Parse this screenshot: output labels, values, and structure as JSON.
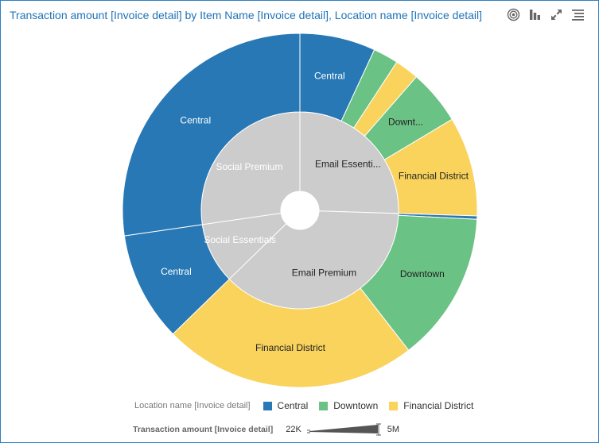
{
  "title": "Transaction amount [Invoice detail] by Item Name [Invoice detail], Location name [Invoice detail]",
  "toolbar": [
    "radial-target-icon",
    "bar-chart-icon",
    "expand-icon",
    "list-menu-icon"
  ],
  "legend": {
    "title": "Location name [Invoice detail]",
    "items": [
      {
        "label": "Central",
        "color": "#2878b5"
      },
      {
        "label": "Downtown",
        "color": "#6bc285"
      },
      {
        "label": "Financial District",
        "color": "#f9d35c"
      }
    ]
  },
  "size_legend": {
    "title": "Transaction amount [Invoice detail]",
    "min": "22K",
    "max": "5M"
  },
  "chart_data": {
    "type": "sunburst",
    "inner_color": "#cccccc",
    "inner": [
      {
        "label": "Email Essenti...",
        "value": 0.255
      },
      {
        "label": "Email Premium",
        "value": 0.372
      },
      {
        "label": "Social Essentials",
        "value": 0.1
      },
      {
        "label": "Social Premium",
        "value": 0.273
      }
    ],
    "outer": [
      {
        "label": "Central",
        "location": "Central",
        "parent": "Email Essenti...",
        "value": 0.069
      },
      {
        "label": "",
        "location": "Downtown",
        "parent": "Email Essenti...",
        "value": 0.023
      },
      {
        "label": "",
        "location": "Financial District",
        "parent": "Email Essenti...",
        "value": 0.022
      },
      {
        "label": "Downt...",
        "location": "Downtown",
        "parent": "Email Essenti...",
        "value": 0.05
      },
      {
        "label": "Financial District",
        "location": "Financial District",
        "parent": "Email Essenti...",
        "value": 0.091
      },
      {
        "label": "",
        "location": "Central",
        "parent": "Email Premium",
        "value": 0.003
      },
      {
        "label": "Downtown",
        "location": "Downtown",
        "parent": "Email Premium",
        "value": 0.137
      },
      {
        "label": "Financial District",
        "location": "Financial District",
        "parent": "Email Premium",
        "value": 0.232
      },
      {
        "label": "Central",
        "location": "Central",
        "parent": "Social Essentials",
        "value": 0.1
      },
      {
        "label": "Central",
        "location": "Central",
        "parent": "Social Premium",
        "value": 0.273
      }
    ]
  }
}
